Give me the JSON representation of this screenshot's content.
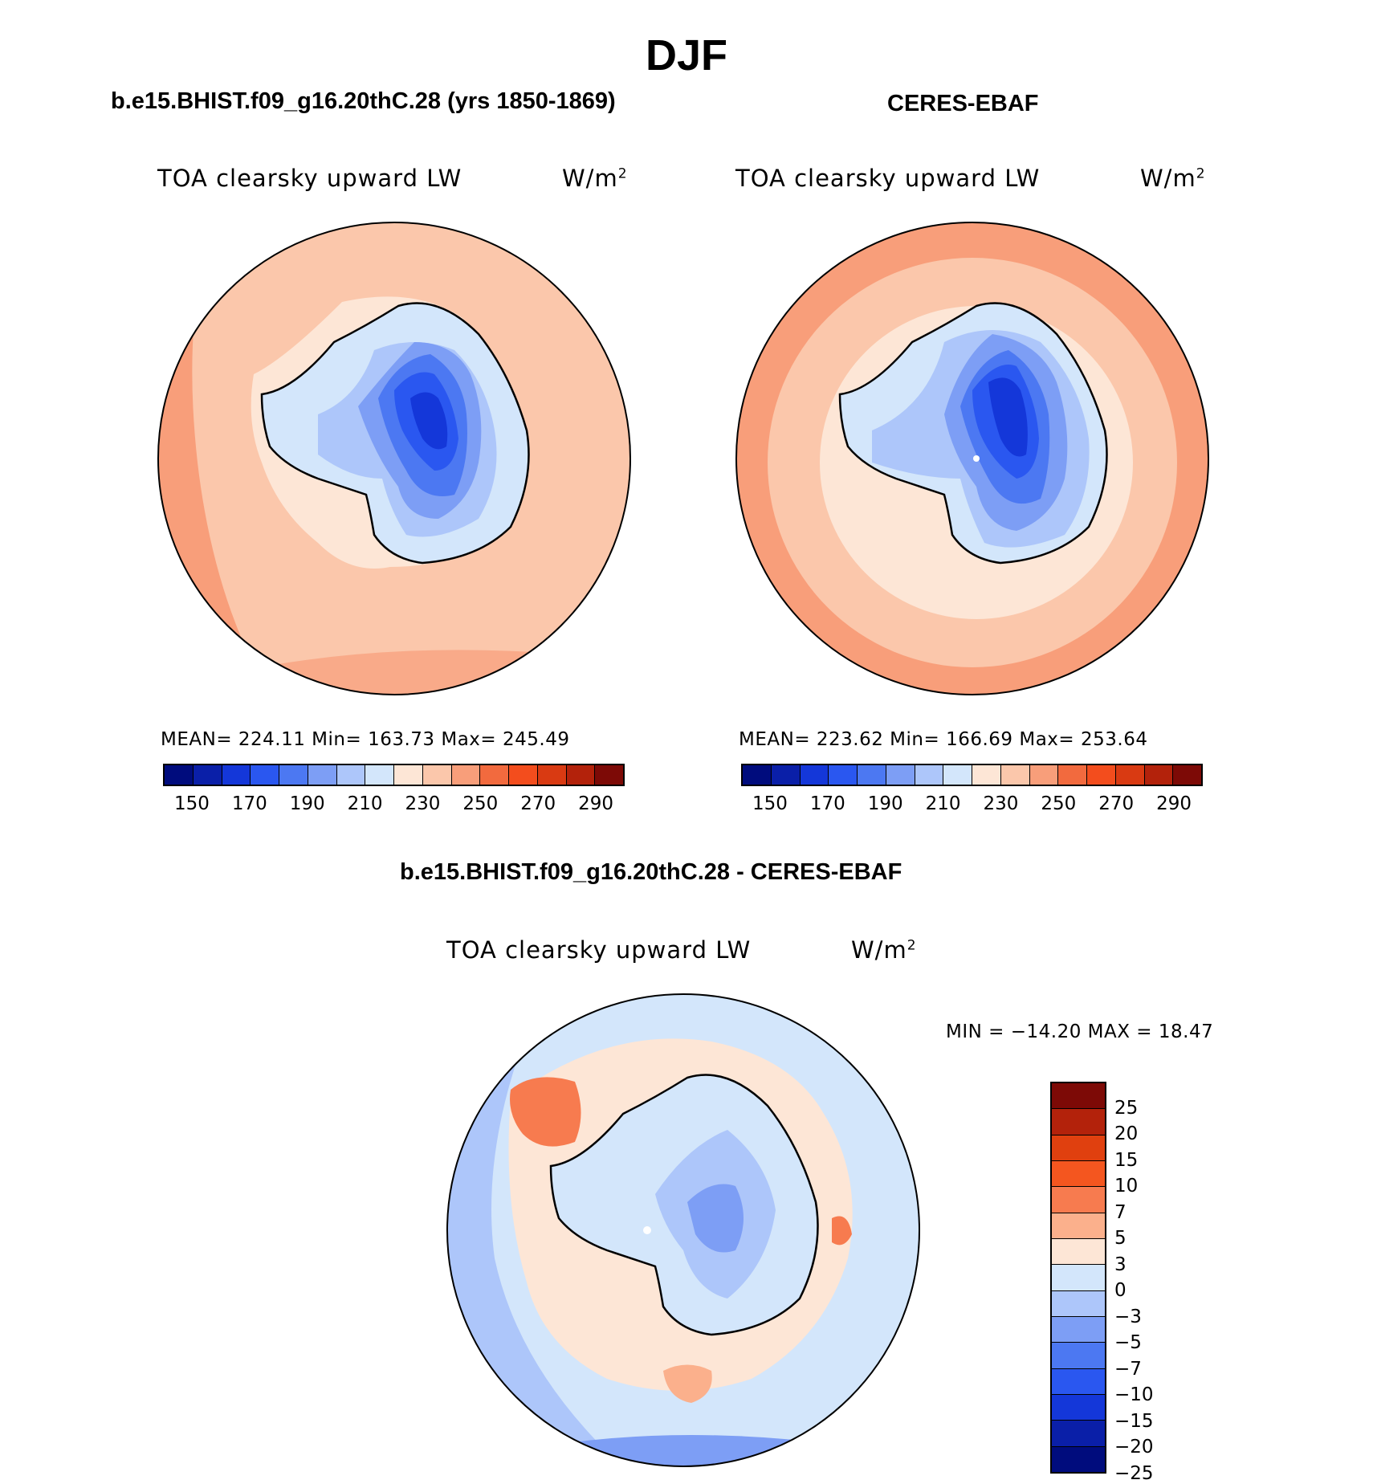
{
  "title": "DJF",
  "panels": {
    "model": {
      "title": "b.e15.BHIST.f09_g16.20thC.28 (yrs 1850-1869)",
      "variable": "TOA clearsky upward LW",
      "units": "W/m",
      "units_sup": "2",
      "stats": "MEAN= 224.11   Min= 163.73   Max= 245.49",
      "ticks": [
        "150",
        "170",
        "190",
        "210",
        "230",
        "250",
        "270",
        "290"
      ]
    },
    "obs": {
      "title": "CERES-EBAF",
      "variable": "TOA clearsky upward LW",
      "units": "W/m",
      "units_sup": "2",
      "stats": "MEAN= 223.62   Min= 166.69   Max= 253.64",
      "ticks": [
        "150",
        "170",
        "190",
        "210",
        "230",
        "250",
        "270",
        "290"
      ]
    },
    "diff": {
      "title": "b.e15.BHIST.f09_g16.20thC.28 - CERES-EBAF",
      "variable": "TOA clearsky upward LW",
      "units": "W/m",
      "units_sup": "2",
      "stats": "MIN = −14.20 MAX =   18.47",
      "ticks": [
        "25",
        "20",
        "15",
        "10",
        "7",
        "5",
        "3",
        "0",
        "−3",
        "−5",
        "−7",
        "−10",
        "−15",
        "−20",
        "−25"
      ]
    }
  },
  "colors": {
    "abs_scale": [
      "#000c7d",
      "#0a1fa8",
      "#1437d9",
      "#2a57f0",
      "#4c78f2",
      "#7d9ef5",
      "#adc6fa",
      "#d3e6fb",
      "#fde6d6",
      "#fbc7ab",
      "#f89e7a",
      "#f26a3e",
      "#f34d1d",
      "#d93a12",
      "#b3220b",
      "#7d0a06"
    ],
    "diff_scale": [
      "#7d0a06",
      "#b3220b",
      "#e0400f",
      "#f4561f",
      "#f77b4f",
      "#fbb08c",
      "#fde6d6",
      "#d3e6fb",
      "#adc6fa",
      "#7d9ef5",
      "#4c78f2",
      "#2a57f0",
      "#1437d9",
      "#0a1fa8",
      "#000c7d"
    ]
  }
}
